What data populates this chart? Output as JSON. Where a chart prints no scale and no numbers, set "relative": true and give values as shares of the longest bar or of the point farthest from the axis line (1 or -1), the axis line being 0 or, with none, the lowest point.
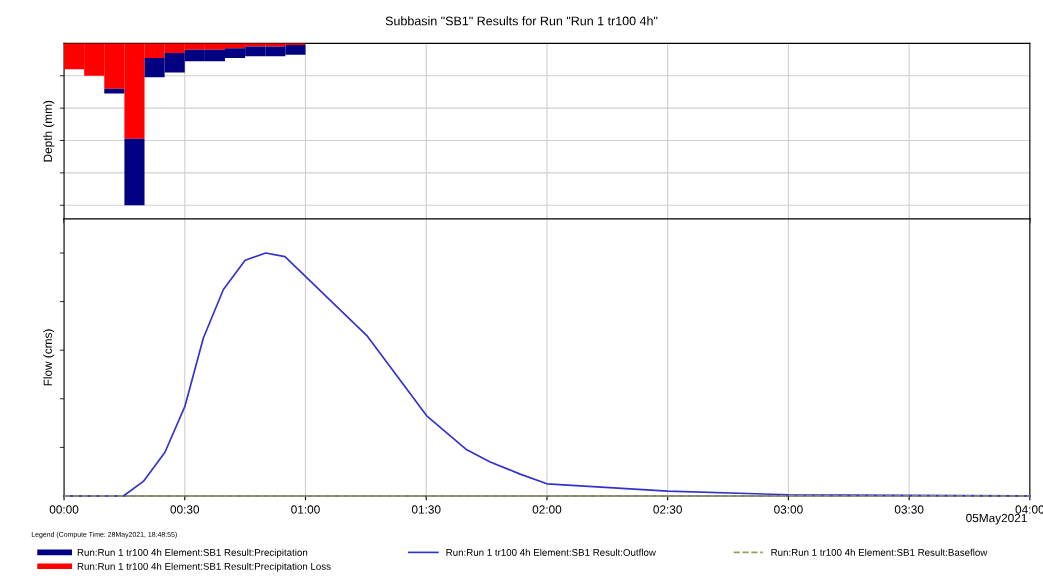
{
  "chart_data": [
    {
      "type": "bar",
      "title": "Subbasin \"SB1\" Results for Run \"Run 1 tr100 4h\"",
      "ylabel": "Depth (mm)",
      "relative": true,
      "stacked": true,
      "x": [
        0.0417,
        0.125,
        0.2083,
        0.2917,
        0.375,
        0.4583,
        0.5417,
        0.625,
        0.7083,
        0.7917,
        0.875,
        0.9583
      ],
      "xlim": [
        0,
        4
      ],
      "series": [
        {
          "name": "Run:Run 1 tr100 4h Element:SB1 Result:Precipitation Loss",
          "color": "#ff0000",
          "values": [
            -0.16,
            -0.2,
            -0.28,
            -0.59,
            -0.09,
            -0.06,
            -0.04,
            -0.04,
            -0.03,
            -0.02,
            -0.02,
            -0.01
          ]
        },
        {
          "name": "Run:Run 1 tr100 4h Element:SB1 Result:Precipitation",
          "color": "#000080",
          "values": [
            0,
            0,
            -0.03,
            -0.41,
            -0.12,
            -0.12,
            -0.07,
            -0.07,
            -0.06,
            -0.06,
            -0.06,
            -0.06
          ]
        }
      ],
      "grid": true,
      "legend": "bottom",
      "tick_labels": false
    },
    {
      "type": "line",
      "ylabel": "Flow (cms)",
      "relative": true,
      "x": [
        0,
        0.2457,
        0.3285,
        0.418,
        0.501,
        0.577,
        0.66,
        0.75,
        0.835,
        0.915,
        1.254,
        1.502,
        1.668,
        1.765,
        1.889,
        2.0,
        2.5,
        3.0,
        4.0
      ],
      "xlim": [
        0,
        4
      ],
      "xticks": [
        {
          "value": 0,
          "label": "00:00"
        },
        {
          "value": 0.5,
          "label": "00:30"
        },
        {
          "value": 1,
          "label": "01:00"
        },
        {
          "value": 1.5,
          "label": "01:30"
        },
        {
          "value": 2,
          "label": "02:00"
        },
        {
          "value": 2.5,
          "label": "02:30"
        },
        {
          "value": 3,
          "label": "03:00"
        },
        {
          "value": 3.5,
          "label": "03:30"
        },
        {
          "value": 4,
          "label": "04:00"
        }
      ],
      "series": [
        {
          "name": "Run:Run 1 tr100 4h Element:SB1 Result:Outflow",
          "color": "#3333cc",
          "line_style": "solid",
          "values": [
            0,
            0,
            0.06,
            0.18,
            0.37,
            0.65,
            0.85,
            0.97,
            1.0,
            0.985,
            0.66,
            0.33,
            0.19,
            0.14,
            0.09,
            0.05,
            0.02,
            0.005,
            0
          ]
        },
        {
          "name": "Run:Run 1 tr100 4h Element:SB1 Result:Baseflow",
          "color": "#999966",
          "line_style": "dashed",
          "x": [
            0,
            4
          ],
          "values": [
            0,
            0
          ]
        }
      ],
      "annotations": [
        "05May2021",
        "Legend (Compute Time: 28May2021, 18:48:55)"
      ],
      "grid": "x",
      "legend": "bottom",
      "tick_labels": "x",
      "marker": "none"
    }
  ]
}
